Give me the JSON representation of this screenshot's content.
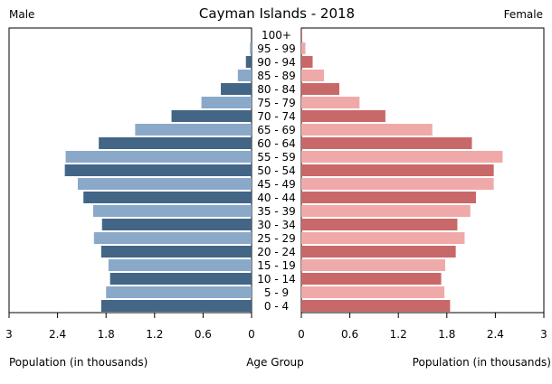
{
  "chart_data": {
    "type": "bar",
    "subtype": "population-pyramid",
    "title": "Cayman Islands - 2018",
    "left_label": "Male",
    "right_label": "Female",
    "xlabel_left": "Population (in thousands)",
    "xlabel_center": "Age Group",
    "xlabel_right": "Population (in thousands)",
    "xlim": [
      0,
      3
    ],
    "ticks": [
      "3",
      "2.4",
      "1.8",
      "1.2",
      "0.6",
      "0",
      "0",
      "0.6",
      "1.2",
      "1.8",
      "2.4",
      "3"
    ],
    "tick_values": [
      3,
      2.4,
      1.8,
      1.2,
      0.6,
      0,
      0,
      0.6,
      1.2,
      1.8,
      2.4,
      3
    ],
    "categories": [
      "0 - 4",
      "5 - 9",
      "10 - 14",
      "15 - 19",
      "20 - 24",
      "25 - 29",
      "30 - 34",
      "35 - 39",
      "40 - 44",
      "45 - 49",
      "50 - 54",
      "55 - 59",
      "60 - 64",
      "65 - 69",
      "70 - 74",
      "75 - 79",
      "80 - 84",
      "85 - 89",
      "90 - 94",
      "95 - 99",
      "100+"
    ],
    "series": [
      {
        "name": "Male",
        "colors": [
          "#436586",
          "#8aa9c9"
        ],
        "values": [
          1.86,
          1.8,
          1.75,
          1.77,
          1.86,
          1.95,
          1.85,
          1.96,
          2.08,
          2.15,
          2.31,
          2.3,
          1.89,
          1.44,
          0.99,
          0.62,
          0.38,
          0.17,
          0.07,
          0.02,
          0.0
        ]
      },
      {
        "name": "Female",
        "colors": [
          "#c96868",
          "#f0a9a9"
        ],
        "values": [
          1.84,
          1.77,
          1.73,
          1.78,
          1.91,
          2.02,
          1.93,
          2.09,
          2.16,
          2.38,
          2.38,
          2.49,
          2.11,
          1.62,
          1.04,
          0.72,
          0.47,
          0.28,
          0.14,
          0.05,
          0.01
        ]
      }
    ]
  }
}
